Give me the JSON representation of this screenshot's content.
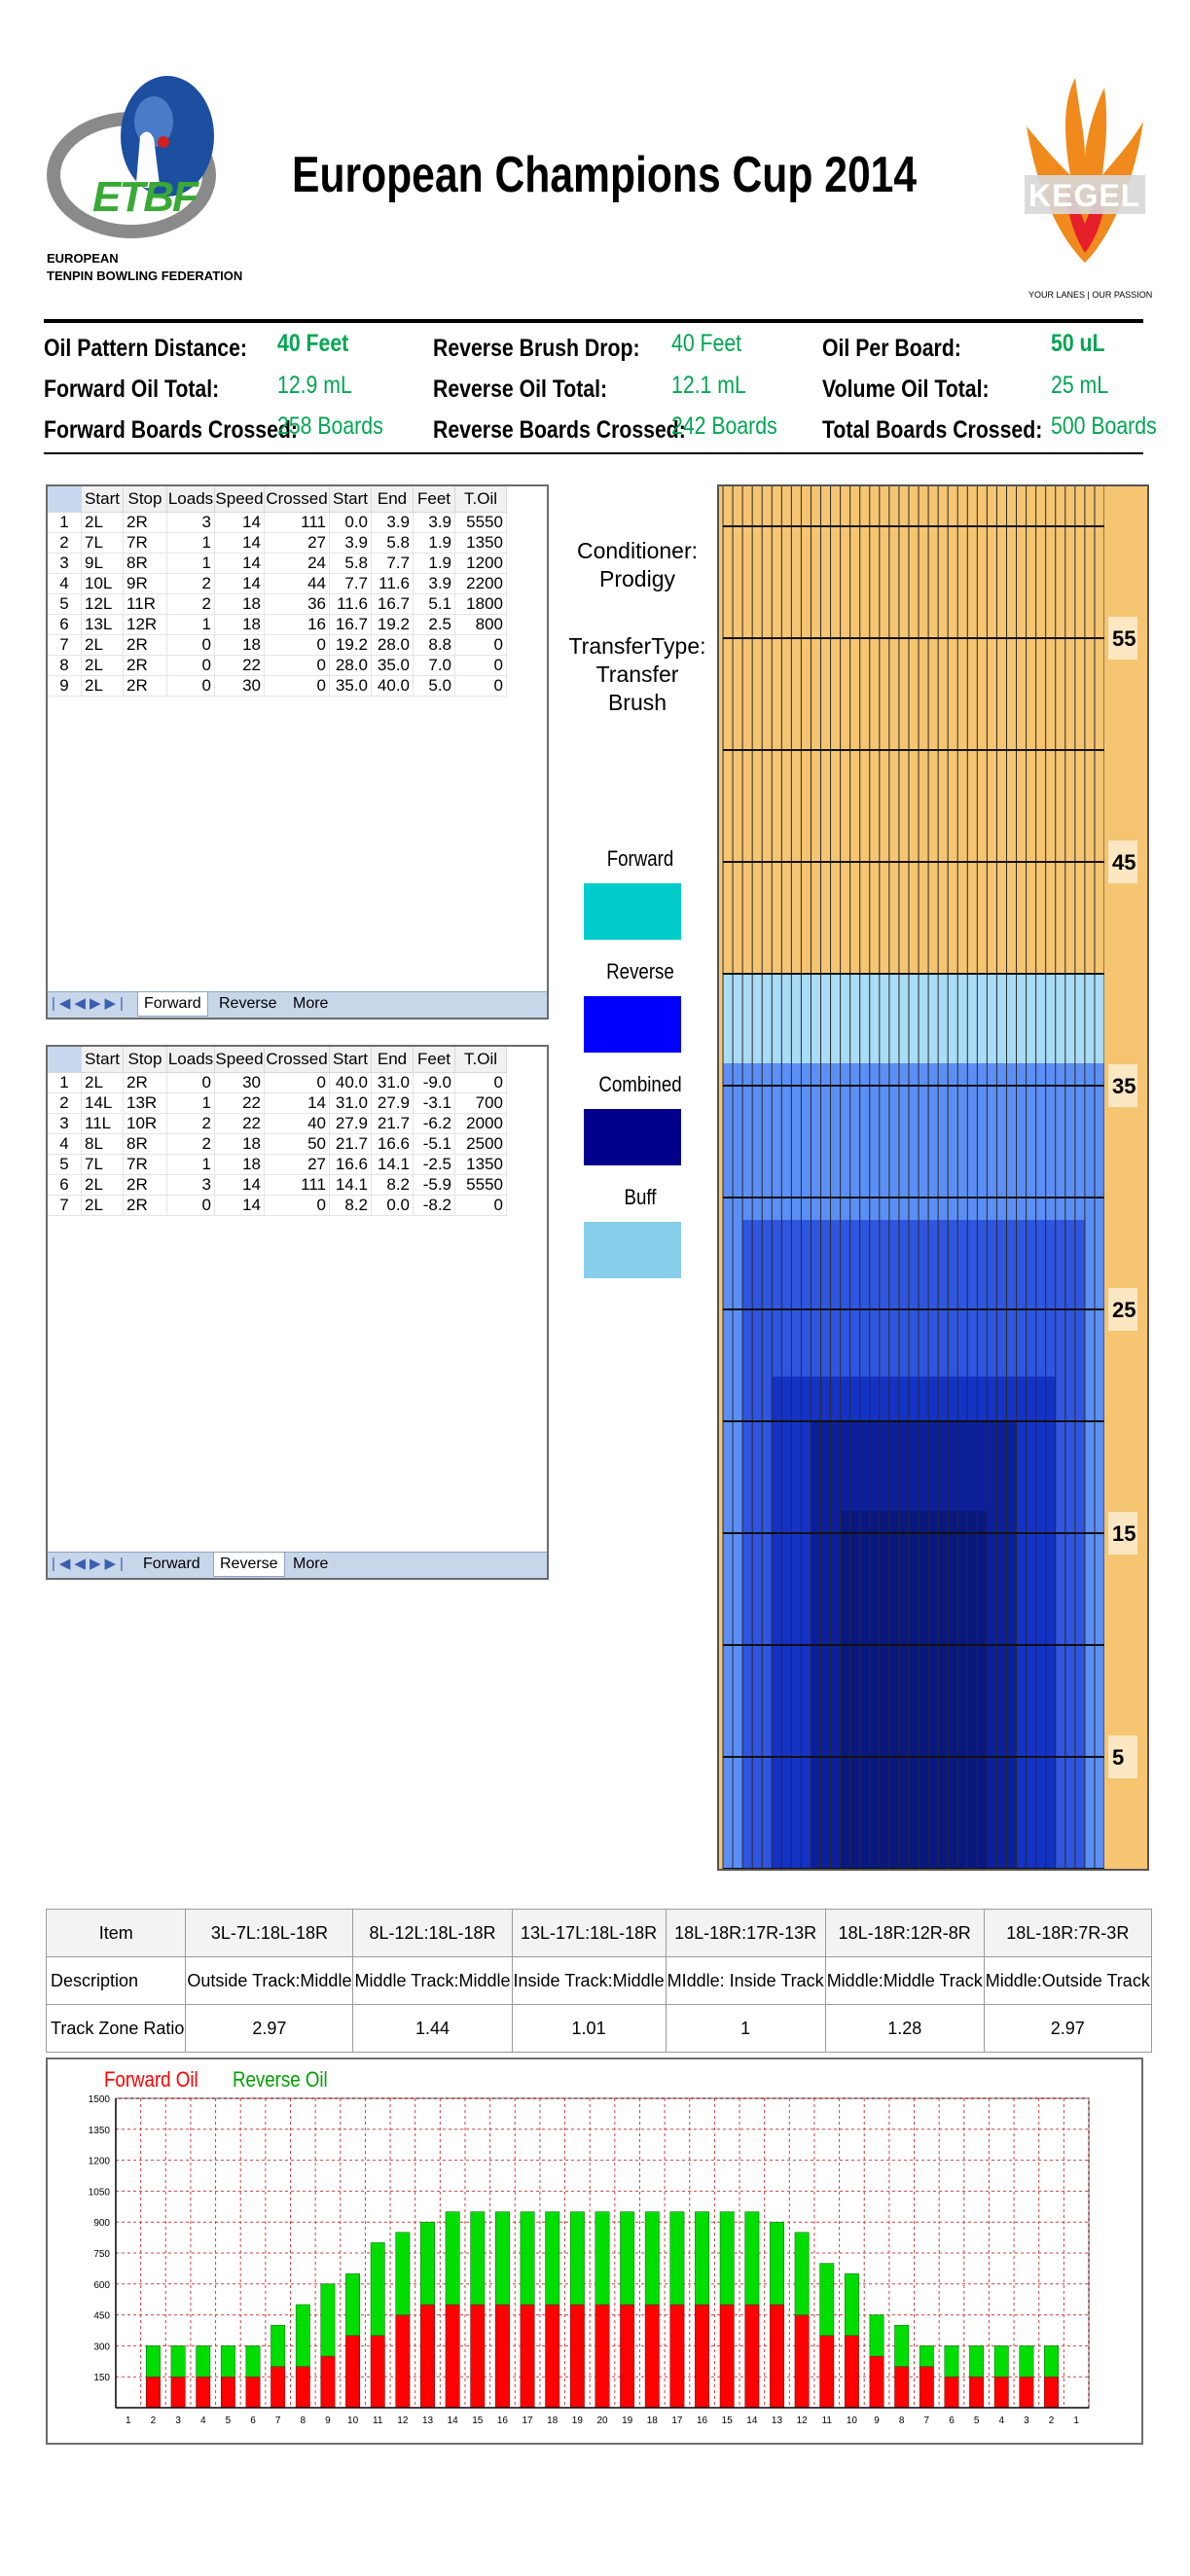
{
  "header": {
    "title": "European Champions Cup 2014",
    "logo_left": {
      "letters": "ETBF",
      "caption_line1": "EUROPEAN",
      "caption_line2": "TENPIN BOWLING FEDERATION"
    },
    "logo_right": {
      "text": "KEGEL",
      "tagline": "YOUR LANES | OUR PASSION"
    }
  },
  "stats": {
    "col1": [
      {
        "label": "Oil Pattern Distance:",
        "value": "40 Feet",
        "bold": true
      },
      {
        "label": "Forward Oil Total:",
        "value": "12.9 mL",
        "bold": false
      },
      {
        "label": "Forward Boards Crossed:",
        "value": "258 Boards",
        "bold": false
      }
    ],
    "col2": [
      {
        "label": "Reverse Brush Drop:",
        "value": "40 Feet",
        "bold": false
      },
      {
        "label": "Reverse Oil Total:",
        "value": "12.1 mL",
        "bold": false
      },
      {
        "label": "Reverse Boards Crossed:",
        "value": "242 Boards",
        "bold": false
      }
    ],
    "col3": [
      {
        "label": "Oil Per Board:",
        "value": "50 uL",
        "bold": true
      },
      {
        "label": "Volume Oil Total:",
        "value": "25 mL",
        "bold": false
      },
      {
        "label": "Total Boards Crossed:",
        "value": "500 Boards",
        "bold": false
      }
    ]
  },
  "grid_columns": [
    "Start",
    "Stop",
    "Loads",
    "Speed",
    "Crossed",
    "Start",
    "End",
    "Feet",
    "T.Oil"
  ],
  "forward_grid": {
    "rows": [
      [
        "1",
        "2L",
        "2R",
        "3",
        "14",
        "111",
        "0.0",
        "3.9",
        "3.9",
        "5550"
      ],
      [
        "2",
        "7L",
        "7R",
        "1",
        "14",
        "27",
        "3.9",
        "5.8",
        "1.9",
        "1350"
      ],
      [
        "3",
        "9L",
        "8R",
        "1",
        "14",
        "24",
        "5.8",
        "7.7",
        "1.9",
        "1200"
      ],
      [
        "4",
        "10L",
        "9R",
        "2",
        "14",
        "44",
        "7.7",
        "11.6",
        "3.9",
        "2200"
      ],
      [
        "5",
        "12L",
        "11R",
        "2",
        "18",
        "36",
        "11.6",
        "16.7",
        "5.1",
        "1800"
      ],
      [
        "6",
        "13L",
        "12R",
        "1",
        "18",
        "16",
        "16.7",
        "19.2",
        "2.5",
        "800"
      ],
      [
        "7",
        "2L",
        "2R",
        "0",
        "18",
        "0",
        "19.2",
        "28.0",
        "8.8",
        "0"
      ],
      [
        "8",
        "2L",
        "2R",
        "0",
        "22",
        "0",
        "28.0",
        "35.0",
        "7.0",
        "0"
      ],
      [
        "9",
        "2L",
        "2R",
        "0",
        "30",
        "0",
        "35.0",
        "40.0",
        "5.0",
        "0"
      ]
    ],
    "tabs": [
      "Forward",
      "Reverse",
      "More"
    ],
    "active_tab": 0
  },
  "reverse_grid": {
    "rows": [
      [
        "1",
        "2L",
        "2R",
        "0",
        "30",
        "0",
        "40.0",
        "31.0",
        "-9.0",
        "0"
      ],
      [
        "2",
        "14L",
        "13R",
        "1",
        "22",
        "14",
        "31.0",
        "27.9",
        "-3.1",
        "700"
      ],
      [
        "3",
        "11L",
        "10R",
        "2",
        "22",
        "40",
        "27.9",
        "21.7",
        "-6.2",
        "2000"
      ],
      [
        "4",
        "8L",
        "8R",
        "2",
        "18",
        "50",
        "21.7",
        "16.6",
        "-5.1",
        "2500"
      ],
      [
        "5",
        "7L",
        "7R",
        "1",
        "18",
        "27",
        "16.6",
        "14.1",
        "-2.5",
        "1350"
      ],
      [
        "6",
        "2L",
        "2R",
        "3",
        "14",
        "111",
        "14.1",
        "8.2",
        "-5.9",
        "5550"
      ],
      [
        "7",
        "2L",
        "2R",
        "0",
        "14",
        "0",
        "8.2",
        "0.0",
        "-8.2",
        "0"
      ]
    ],
    "tabs": [
      "Forward",
      "Reverse",
      "More"
    ],
    "active_tab": 1
  },
  "conditioner": {
    "label": "Conditioner:",
    "value": "Prodigy",
    "transfer_label": "TransferType:",
    "transfer_value": "Transfer Brush"
  },
  "legend": [
    {
      "label": "Forward",
      "color": "#00cccc"
    },
    {
      "label": "Reverse",
      "color": "#0000ff"
    },
    {
      "label": "Combined",
      "color": "#00008b"
    },
    {
      "label": "Buff",
      "color": "#87ceeb"
    }
  ],
  "lane_graph": {
    "ruler_labels": [
      "55",
      "45",
      "35",
      "25",
      "15",
      "5"
    ],
    "colors": {
      "wood": "#f5c572",
      "buff": "#a9dcf6",
      "light": "#5b8ff5",
      "medium": "#2f56e0",
      "deep": "#1433c6",
      "deepest": "#0b1f9c"
    }
  },
  "ratio_table": {
    "header": [
      "Item",
      "3L-7L:18L-18R",
      "8L-12L:18L-18R",
      "13L-17L:18L-18R",
      "18L-18R:17R-13R",
      "18L-18R:12R-8R",
      "18L-18R:7R-3R"
    ],
    "rows": [
      [
        "Description",
        "Outside Track:Middle",
        "Middle Track:Middle",
        "Inside Track:Middle",
        "MIddle: Inside Track",
        "Middle:Middle Track",
        "Middle:Outside Track"
      ],
      [
        "Track Zone Ratio",
        "2.97",
        "1.44",
        "1.01",
        "1",
        "1.28",
        "2.97"
      ]
    ]
  },
  "chart_data": {
    "type": "bar",
    "stacked": true,
    "legend_position": "top-left",
    "grid": true,
    "ylim": [
      0,
      1500
    ],
    "yticks": [
      150,
      300,
      450,
      600,
      750,
      900,
      1050,
      1200,
      1350,
      1500
    ],
    "categories": [
      "1",
      "2",
      "3",
      "4",
      "5",
      "6",
      "7",
      "8",
      "9",
      "10",
      "11",
      "12",
      "13",
      "14",
      "15",
      "16",
      "17",
      "18",
      "19",
      "20",
      "19",
      "18",
      "17",
      "16",
      "15",
      "14",
      "13",
      "12",
      "11",
      "10",
      "9",
      "8",
      "7",
      "6",
      "5",
      "4",
      "3",
      "2",
      "1"
    ],
    "series": [
      {
        "name": "Forward Oil",
        "color": "#ff0000",
        "values": [
          0,
          150,
          150,
          150,
          150,
          150,
          200,
          200,
          250,
          350,
          350,
          450,
          500,
          500,
          500,
          500,
          500,
          500,
          500,
          500,
          500,
          500,
          500,
          500,
          500,
          500,
          500,
          450,
          350,
          350,
          250,
          200,
          200,
          150,
          150,
          150,
          150,
          150,
          0
        ]
      },
      {
        "name": "Reverse Oil",
        "color": "#00dd00",
        "values": [
          0,
          150,
          150,
          150,
          150,
          150,
          200,
          300,
          350,
          300,
          450,
          400,
          400,
          450,
          450,
          450,
          450,
          450,
          450,
          450,
          450,
          450,
          450,
          450,
          450,
          450,
          400,
          400,
          350,
          300,
          200,
          200,
          100,
          150,
          150,
          150,
          150,
          150,
          0
        ]
      }
    ]
  }
}
